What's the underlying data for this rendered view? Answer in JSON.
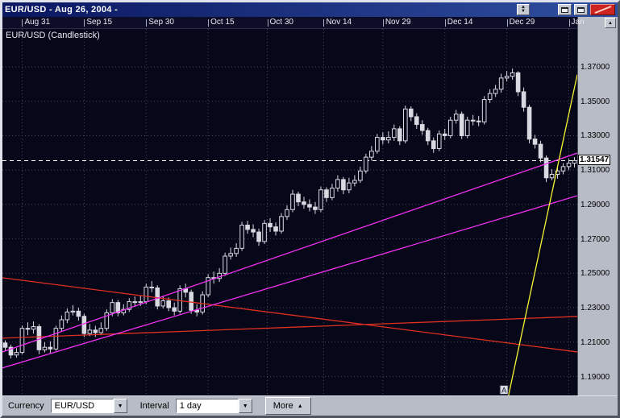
{
  "window": {
    "title": "EUR/USD - Aug 26, 2004 -"
  },
  "icons": {
    "up": "▲",
    "down": "▼",
    "dropdown": "▼",
    "more_arrow": "▲",
    "corner_up": "▲"
  },
  "chart": {
    "overlay_label": "EUR/USD (Candlestick)"
  },
  "toolbar": {
    "currency_label": "Currency",
    "currency_value": "EUR/USD",
    "interval_label": "Interval",
    "interval_value": "1 day",
    "more_label": "More"
  },
  "chart_data": {
    "type": "candlestick",
    "title": "EUR/USD (Candlestick)",
    "symbol": "EUR/USD",
    "interval": "1 day",
    "ylim": [
      1.179,
      1.392
    ],
    "grid": true,
    "y_ticks": [
      {
        "label": "1.37000",
        "value": 1.37
      },
      {
        "label": "1.35000",
        "value": 1.35
      },
      {
        "label": "1.33000",
        "value": 1.33
      },
      {
        "label": "1.31000",
        "value": 1.31
      },
      {
        "label": "1.29000",
        "value": 1.29
      },
      {
        "label": "1.27000",
        "value": 1.27
      },
      {
        "label": "1.25000",
        "value": 1.25
      },
      {
        "label": "1.23000",
        "value": 1.23
      },
      {
        "label": "1.21000",
        "value": 1.21
      },
      {
        "label": "1.19000",
        "value": 1.19
      }
    ],
    "current_price": {
      "label": "1.31547",
      "value": 1.31547
    },
    "x_ticks": [
      {
        "label": "Aug 31",
        "i": 3
      },
      {
        "label": "Sep 15",
        "i": 14
      },
      {
        "label": "Sep 30",
        "i": 25
      },
      {
        "label": "Oct 15",
        "i": 36
      },
      {
        "label": "Oct 30",
        "i": 46.5
      },
      {
        "label": "Nov 14",
        "i": 56.5
      },
      {
        "label": "Nov 29",
        "i": 67
      },
      {
        "label": "Dec 14",
        "i": 78
      },
      {
        "label": "Dec 29",
        "i": 89
      },
      {
        "label": "Jan",
        "i": 100
      }
    ],
    "candles": [
      [
        1.2095,
        1.211,
        1.205,
        1.207
      ],
      [
        1.207,
        1.2085,
        1.2005,
        1.2025
      ],
      [
        1.2025,
        1.2065,
        1.201,
        1.204
      ],
      [
        1.204,
        1.2195,
        1.203,
        1.218
      ],
      [
        1.218,
        1.2215,
        1.214,
        1.2175
      ],
      [
        1.2175,
        1.222,
        1.215,
        1.219
      ],
      [
        1.219,
        1.2205,
        1.203,
        1.2055
      ],
      [
        1.2055,
        1.21,
        1.204,
        1.207
      ],
      [
        1.207,
        1.2105,
        1.2035,
        1.206
      ],
      [
        1.206,
        1.2195,
        1.205,
        1.218
      ],
      [
        1.218,
        1.2255,
        1.216,
        1.223
      ],
      [
        1.223,
        1.2295,
        1.221,
        1.2275
      ],
      [
        1.2275,
        1.2315,
        1.2255,
        1.228
      ],
      [
        1.228,
        1.23,
        1.2225,
        1.225
      ],
      [
        1.225,
        1.2265,
        1.213,
        1.215
      ],
      [
        1.215,
        1.2205,
        1.2135,
        1.217
      ],
      [
        1.217,
        1.2195,
        1.213,
        1.2155
      ],
      [
        1.2155,
        1.2215,
        1.214,
        1.218
      ],
      [
        1.218,
        1.229,
        1.2165,
        1.227
      ],
      [
        1.227,
        1.235,
        1.225,
        1.233
      ],
      [
        1.233,
        1.2345,
        1.225,
        1.227
      ],
      [
        1.227,
        1.232,
        1.2255,
        1.229
      ],
      [
        1.229,
        1.2355,
        1.2275,
        1.2335
      ],
      [
        1.2335,
        1.2365,
        1.2305,
        1.233
      ],
      [
        1.233,
        1.237,
        1.231,
        1.2335
      ],
      [
        1.2335,
        1.244,
        1.232,
        1.242
      ],
      [
        1.242,
        1.2455,
        1.239,
        1.2415
      ],
      [
        1.2415,
        1.243,
        1.229,
        1.231
      ],
      [
        1.231,
        1.237,
        1.2295,
        1.234
      ],
      [
        1.234,
        1.236,
        1.228,
        1.23
      ],
      [
        1.23,
        1.233,
        1.2255,
        1.228
      ],
      [
        1.228,
        1.243,
        1.2265,
        1.241
      ],
      [
        1.241,
        1.244,
        1.236,
        1.239
      ],
      [
        1.239,
        1.2405,
        1.2265,
        1.2285
      ],
      [
        1.2285,
        1.232,
        1.225,
        1.2275
      ],
      [
        1.2275,
        1.2395,
        1.226,
        1.2375
      ],
      [
        1.2375,
        1.2495,
        1.236,
        1.2475
      ],
      [
        1.2475,
        1.251,
        1.244,
        1.247
      ],
      [
        1.247,
        1.253,
        1.245,
        1.25
      ],
      [
        1.25,
        1.262,
        1.2485,
        1.26
      ],
      [
        1.26,
        1.265,
        1.258,
        1.2615
      ],
      [
        1.2615,
        1.2675,
        1.2595,
        1.2645
      ],
      [
        1.2645,
        1.28,
        1.263,
        1.278
      ],
      [
        1.278,
        1.2805,
        1.273,
        1.2755
      ],
      [
        1.2755,
        1.2785,
        1.271,
        1.274
      ],
      [
        1.274,
        1.276,
        1.266,
        1.2685
      ],
      [
        1.2685,
        1.281,
        1.267,
        1.279
      ],
      [
        1.279,
        1.282,
        1.274,
        1.277
      ],
      [
        1.277,
        1.2795,
        1.272,
        1.2745
      ],
      [
        1.2745,
        1.285,
        1.273,
        1.283
      ],
      [
        1.283,
        1.2895,
        1.281,
        1.287
      ],
      [
        1.287,
        1.2985,
        1.2855,
        1.296
      ],
      [
        1.296,
        1.2975,
        1.289,
        1.2915
      ],
      [
        1.2915,
        1.2945,
        1.2875,
        1.29
      ],
      [
        1.29,
        1.293,
        1.286,
        1.2885
      ],
      [
        1.2885,
        1.2915,
        1.2845,
        1.287
      ],
      [
        1.287,
        1.3005,
        1.2855,
        1.2985
      ],
      [
        1.2985,
        1.3,
        1.2915,
        1.294
      ],
      [
        1.294,
        1.302,
        1.2925,
        1.2995
      ],
      [
        1.2995,
        1.307,
        1.2975,
        1.3045
      ],
      [
        1.3045,
        1.306,
        1.296,
        1.2985
      ],
      [
        1.2985,
        1.3055,
        1.2965,
        1.3025
      ],
      [
        1.3025,
        1.307,
        1.3005,
        1.304
      ],
      [
        1.304,
        1.312,
        1.3025,
        1.3095
      ],
      [
        1.3095,
        1.3195,
        1.308,
        1.3175
      ],
      [
        1.3175,
        1.324,
        1.3155,
        1.321
      ],
      [
        1.321,
        1.331,
        1.3195,
        1.329
      ],
      [
        1.329,
        1.332,
        1.325,
        1.3275
      ],
      [
        1.3275,
        1.3325,
        1.3255,
        1.329
      ],
      [
        1.329,
        1.3365,
        1.327,
        1.334
      ],
      [
        1.334,
        1.3355,
        1.3245,
        1.327
      ],
      [
        1.327,
        1.3475,
        1.3255,
        1.3455
      ],
      [
        1.3455,
        1.347,
        1.3385,
        1.341
      ],
      [
        1.341,
        1.343,
        1.334,
        1.3365
      ],
      [
        1.3365,
        1.339,
        1.3305,
        1.333
      ],
      [
        1.333,
        1.3345,
        1.3245,
        1.327
      ],
      [
        1.327,
        1.329,
        1.32,
        1.3225
      ],
      [
        1.3225,
        1.333,
        1.321,
        1.331
      ],
      [
        1.331,
        1.334,
        1.3275,
        1.33
      ],
      [
        1.33,
        1.341,
        1.3285,
        1.339
      ],
      [
        1.339,
        1.345,
        1.337,
        1.3425
      ],
      [
        1.3425,
        1.344,
        1.328,
        1.33
      ],
      [
        1.33,
        1.341,
        1.3285,
        1.339
      ],
      [
        1.339,
        1.342,
        1.336,
        1.3385
      ],
      [
        1.3385,
        1.3415,
        1.3355,
        1.338
      ],
      [
        1.338,
        1.353,
        1.3365,
        1.351
      ],
      [
        1.351,
        1.357,
        1.349,
        1.3545
      ],
      [
        1.3545,
        1.3595,
        1.3525,
        1.357
      ],
      [
        1.357,
        1.366,
        1.355,
        1.3635
      ],
      [
        1.3635,
        1.3675,
        1.3615,
        1.3645
      ],
      [
        1.3645,
        1.369,
        1.3625,
        1.3665
      ],
      [
        1.3665,
        1.3675,
        1.353,
        1.3555
      ],
      [
        1.3555,
        1.358,
        1.344,
        1.3465
      ],
      [
        1.3465,
        1.348,
        1.3255,
        1.328
      ],
      [
        1.328,
        1.3305,
        1.3225,
        1.325
      ],
      [
        1.325,
        1.327,
        1.3145,
        1.317
      ],
      [
        1.317,
        1.3185,
        1.303,
        1.3055
      ],
      [
        1.3055,
        1.3105,
        1.304,
        1.3075
      ],
      [
        1.3075,
        1.312,
        1.305,
        1.3095
      ],
      [
        1.3095,
        1.314,
        1.3075,
        1.312
      ],
      [
        1.312,
        1.3165,
        1.31,
        1.314
      ],
      [
        1.314,
        1.3175,
        1.3115,
        1.3155
      ]
    ],
    "trendlines": [
      {
        "name": "trendline-red-descending",
        "color": "#e03020",
        "i1": -0.5,
        "p1": 1.2474,
        "i2": 101.5,
        "p2": 1.2043
      },
      {
        "name": "trendline-red-ascending",
        "color": "#e03020",
        "i1": -0.5,
        "p1": 1.2123,
        "i2": 101.5,
        "p2": 1.2249
      },
      {
        "name": "trendline-magenta-lower",
        "color": "#f030f0",
        "i1": -0.5,
        "p1": 1.195,
        "i2": 101.5,
        "p2": 1.2951
      },
      {
        "name": "trendline-magenta-upper",
        "color": "#f030f0",
        "i1": -0.5,
        "p1": 1.2043,
        "i2": 101.5,
        "p2": 1.3199
      },
      {
        "name": "trendline-yellow-steep",
        "color": "#f5f535",
        "i1": 89.3,
        "p1": 1.179,
        "i2": 101.5,
        "p2": 1.3655
      }
    ],
    "marker": {
      "label": "A",
      "i": 88.5,
      "price": 1.1825
    },
    "colors": {
      "background": "#07071a",
      "grid": "#474768",
      "candle": "#d9d9e2",
      "current_price_line": "#ffffff",
      "magenta": "#f030f0",
      "red": "#e03020",
      "yellow": "#f5f535"
    }
  }
}
